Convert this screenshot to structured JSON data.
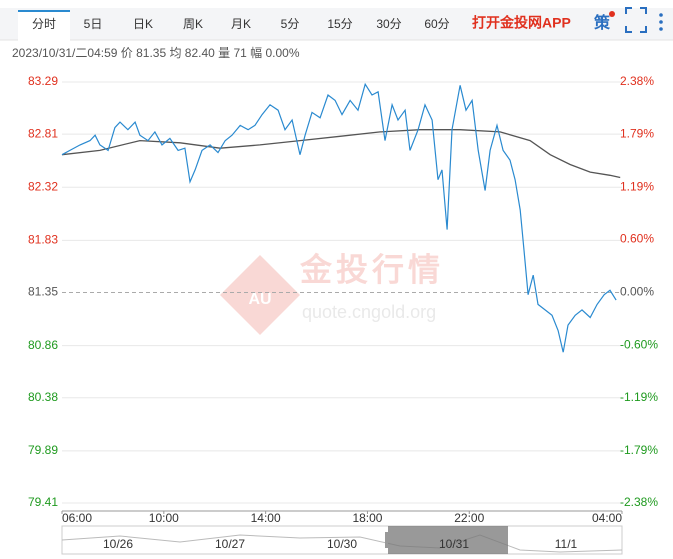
{
  "tabs": [
    "分时",
    "5日",
    "日K",
    "周K",
    "月K",
    "5分",
    "15分",
    "30分",
    "60分"
  ],
  "active_tab": 0,
  "app_link": "打开金投网APP",
  "strategy": "策",
  "info": "2023/10/31/二04:59  价 81.35  均 82.40  量 71  幅 0.00%",
  "watermark": {
    "title": "金投行情",
    "url": "quote.cngold.org",
    "badge": "AU"
  },
  "chart_data": {
    "type": "line",
    "reference": 81.35,
    "up_color": "#e0301e",
    "down_color": "#1f9a1f",
    "flat_color": "#555555",
    "xlim": [
      0,
      22
    ],
    "xticks": [
      {
        "value": 0,
        "label": "06:00"
      },
      {
        "value": 4,
        "label": "10:00"
      },
      {
        "value": 8,
        "label": "14:00"
      },
      {
        "value": 12,
        "label": "18:00"
      },
      {
        "value": 16,
        "label": "22:00"
      },
      {
        "value": 22,
        "label": "04:00"
      }
    ],
    "ylim": [
      79.41,
      83.29
    ],
    "yticks": [
      83.29,
      82.81,
      82.32,
      81.83,
      81.35,
      80.86,
      80.38,
      79.89,
      79.41
    ],
    "y2lim": [
      -2.38,
      2.38
    ],
    "y2ticks": [
      {
        "value": 2.38,
        "label": "2.38%"
      },
      {
        "value": 1.79,
        "label": "1.79%"
      },
      {
        "value": 1.19,
        "label": "1.19%"
      },
      {
        "value": 0.6,
        "label": "0.60%"
      },
      {
        "value": 0,
        "label": "0.00%"
      },
      {
        "value": -0.6,
        "label": "-0.60%"
      },
      {
        "value": -1.19,
        "label": "-1.19%"
      },
      {
        "value": -1.79,
        "label": "-1.79%"
      },
      {
        "value": -2.38,
        "label": "-2.38%"
      }
    ],
    "grid": true,
    "series": [
      {
        "color": "#2a8ad0",
        "x": [
          0,
          0.31,
          0.71,
          1.1,
          1.3,
          1.49,
          1.81,
          2.08,
          2.28,
          2.59,
          2.87,
          3.06,
          3.38,
          3.65,
          3.93,
          4.24,
          4.56,
          4.83,
          5.03,
          5.23,
          5.5,
          5.82,
          6.13,
          6.41,
          6.68,
          7.0,
          7.31,
          7.58,
          7.86,
          8.17,
          8.49,
          8.76,
          9.04,
          9.35,
          9.55,
          9.82,
          10.14,
          10.45,
          10.73,
          11.0,
          11.32,
          11.63,
          11.91,
          12.18,
          12.42,
          12.69,
          12.97,
          13.2,
          13.48,
          13.67,
          13.99,
          14.26,
          14.54,
          14.77,
          14.93,
          15.13,
          15.32,
          15.64,
          15.87,
          16.11,
          16.35,
          16.62,
          16.82,
          17.09,
          17.33,
          17.6,
          17.8,
          18.0,
          18.15,
          18.31,
          18.51,
          18.7,
          18.98,
          19.25,
          19.49,
          19.69,
          19.88,
          20.16,
          20.43,
          20.75,
          21.02,
          21.3,
          21.53,
          21.77
        ],
        "values": [
          82.62,
          82.66,
          82.71,
          82.75,
          82.8,
          82.71,
          82.66,
          82.87,
          82.92,
          82.85,
          82.92,
          82.8,
          82.75,
          82.83,
          82.71,
          82.77,
          82.66,
          82.68,
          82.37,
          82.48,
          82.66,
          82.71,
          82.64,
          82.75,
          82.8,
          82.89,
          82.85,
          82.89,
          82.99,
          83.08,
          83.03,
          82.85,
          82.94,
          82.62,
          82.8,
          83.01,
          82.96,
          83.17,
          83.12,
          82.99,
          83.12,
          83.03,
          83.27,
          83.17,
          83.2,
          82.75,
          83.08,
          82.94,
          83.03,
          82.66,
          82.85,
          83.08,
          82.94,
          82.39,
          82.48,
          81.93,
          82.85,
          83.26,
          83.03,
          83.12,
          82.66,
          82.29,
          82.66,
          82.89,
          82.66,
          82.57,
          82.39,
          82.11,
          81.74,
          81.33,
          81.51,
          81.24,
          81.19,
          81.14,
          81.0,
          80.8,
          81.05,
          81.14,
          81.19,
          81.12,
          81.24,
          81.33,
          81.37,
          81.28
        ]
      },
      {
        "color": "#555555",
        "x": [
          0,
          1.49,
          3.06,
          4.64,
          6.21,
          7.78,
          9.35,
          10.92,
          12.5,
          14.07,
          15.64,
          17.21,
          18.39,
          19.18,
          19.96,
          20.75,
          21.53,
          21.93
        ],
        "values": [
          82.62,
          82.66,
          82.75,
          82.73,
          82.68,
          82.71,
          82.75,
          82.79,
          82.83,
          82.85,
          82.85,
          82.83,
          82.75,
          82.62,
          82.53,
          82.46,
          82.43,
          82.41
        ]
      }
    ]
  },
  "navigator": {
    "labels": [
      "10/26",
      "10/27",
      "10/30",
      "10/31",
      "11/1"
    ],
    "selected": 3
  }
}
